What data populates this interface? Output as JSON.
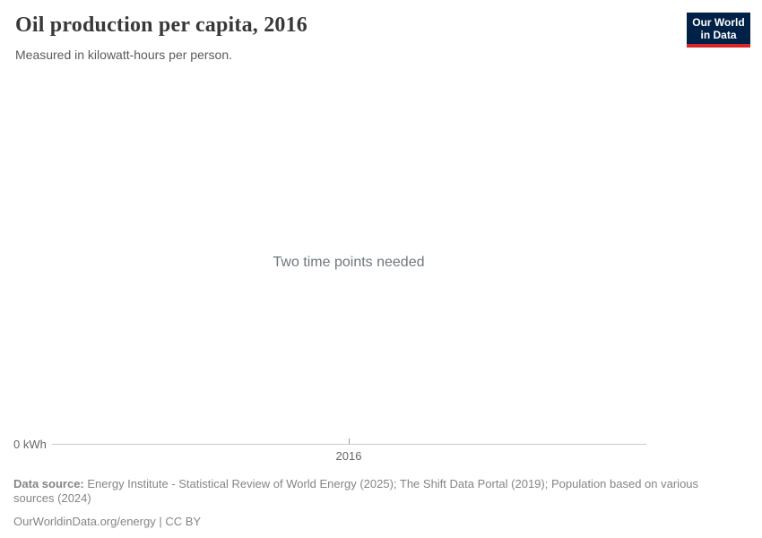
{
  "header": {
    "title": "Oil production per capita, 2016",
    "subtitle": "Measured in kilowatt-hours per person.",
    "logo": {
      "line1": "Our World",
      "line2": "in Data"
    }
  },
  "chart": {
    "empty_message": "Two time points needed",
    "y_axis_label": "0 kWh",
    "x_tick_label": "2016"
  },
  "chart_data": {
    "type": "line",
    "title": "Oil production per capita, 2016",
    "subtitle": "Measured in kilowatt-hours per person.",
    "x": [
      2016
    ],
    "series": [],
    "values": [],
    "empty_state_message": "Two time points needed",
    "ylabel": "kWh",
    "y_axis_start_label": "0 kWh",
    "xlim": [
      2016,
      2016
    ],
    "grid": false,
    "legend": "none",
    "notes": "Empty grapher state: no line can be drawn because only one time point (2016) is selected"
  },
  "colors": {
    "logo_background": "#002147",
    "logo_accent_red": "#d62828",
    "axis_line": "#cccccc",
    "axis_tick": "#999999",
    "title_text": "#383838",
    "muted_text": "#858585"
  },
  "footer": {
    "source_label": "Data source:",
    "source_text": "Energy Institute - Statistical Review of World Energy (2025); The Shift Data Portal (2019); Population based on various sources (2024)",
    "citation": "OurWorldinData.org/energy | CC BY"
  }
}
